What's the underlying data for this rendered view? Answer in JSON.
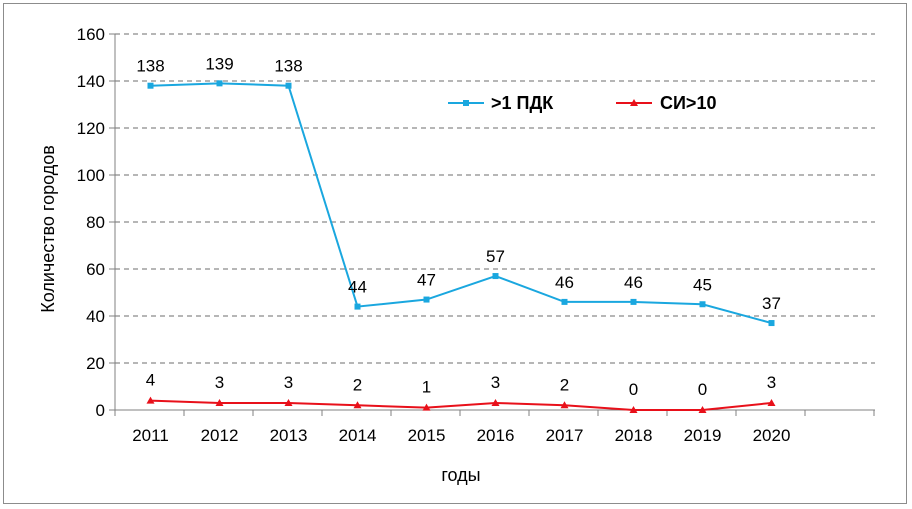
{
  "chart_data": {
    "type": "line",
    "title": "",
    "xlabel": "годы",
    "ylabel": "Количество городов",
    "ylim": [
      0,
      160
    ],
    "yticks": [
      0,
      20,
      40,
      60,
      80,
      100,
      120,
      140,
      160
    ],
    "grid": true,
    "legend_position": "top-right",
    "categories": [
      "2011",
      "2012",
      "2013",
      "2014",
      "2015",
      "2016",
      "2017",
      "2018",
      "2019",
      "2020"
    ],
    "series": [
      {
        "name": ">1 ПДК",
        "color": "#1aa7df",
        "marker": "square",
        "values": [
          138,
          139,
          138,
          44,
          47,
          57,
          46,
          46,
          45,
          37
        ]
      },
      {
        "name": "СИ>10",
        "color": "#e8101a",
        "marker": "triangle",
        "values": [
          4,
          3,
          3,
          2,
          1,
          3,
          2,
          0,
          0,
          3
        ]
      }
    ]
  }
}
